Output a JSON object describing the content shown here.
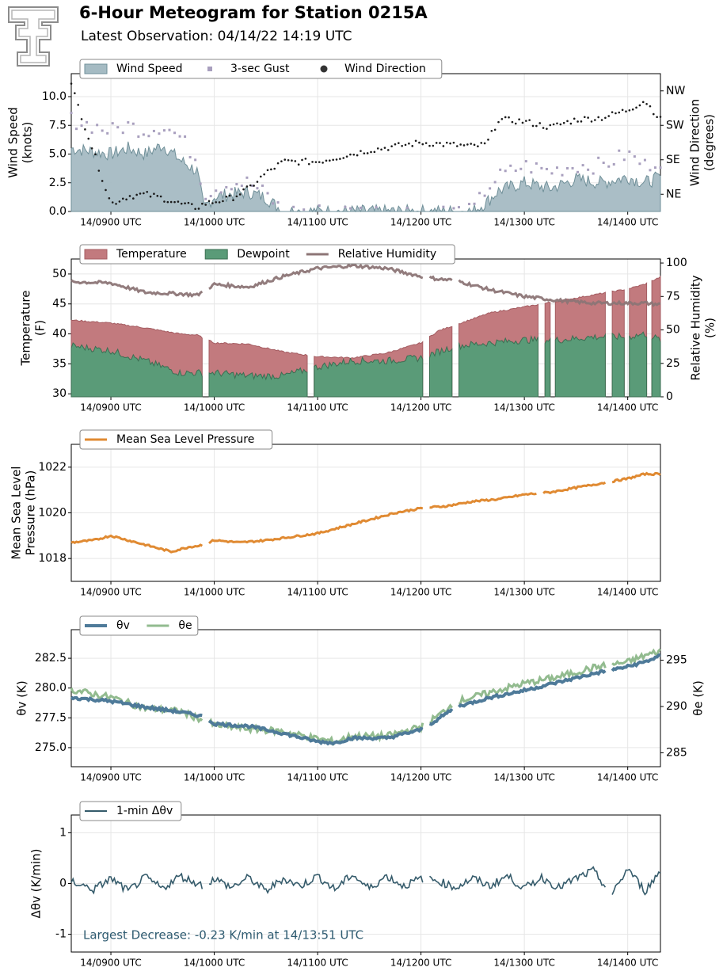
{
  "header": {
    "title": "6-Hour Meteogram for Station 0215A",
    "subtitle": "Latest Observation: 04/14/22 14:19 UTC"
  },
  "x_tick_labels": [
    "14/0900 UTC",
    "14/1000 UTC",
    "14/1100 UTC",
    "14/1200 UTC",
    "14/1300 UTC",
    "14/1400 UTC"
  ],
  "chart_data": [
    {
      "type": "area",
      "legend": [
        "Wind Speed",
        "3-sec Gust",
        "Wind Direction"
      ],
      "legend_placement": "top-left",
      "ylabel": "Wind Speed\n(knots)",
      "ylabel2": "Wind Direction\n(degrees)",
      "ylim": [
        0,
        12
      ],
      "yticks": [
        0.0,
        2.5,
        5.0,
        7.5,
        10.0
      ],
      "ylim2": [
        0,
        360
      ],
      "yticks2_labels": [
        "NE",
        "SE",
        "SW",
        "NW"
      ],
      "yticks2_values": [
        45,
        135,
        225,
        315
      ],
      "x": [
        "08:37",
        "09:00",
        "09:10",
        "09:20",
        "09:30",
        "09:40",
        "09:50",
        "09:54",
        "10:00",
        "10:10",
        "10:20",
        "10:30",
        "10:40",
        "10:50",
        "11:00",
        "11:30",
        "12:00",
        "12:30",
        "12:38",
        "12:45",
        "13:00",
        "13:15",
        "13:30",
        "13:45",
        "14:00",
        "14:10",
        "14:19"
      ],
      "wind_speed": [
        5.5,
        5.0,
        5.5,
        5.0,
        5.8,
        4.5,
        3.5,
        0.3,
        1.3,
        1.5,
        1.7,
        1.2,
        0.0,
        0.0,
        0.0,
        0.0,
        0.0,
        0.0,
        0.8,
        1.8,
        2.5,
        2.0,
        2.8,
        2.5,
        3.0,
        2.5,
        3.0
      ],
      "gust": [
        8.0,
        7.0,
        7.5,
        7.0,
        7.5,
        6.5,
        4.5,
        1.5,
        2.0,
        2.5,
        2.5,
        1.5,
        0.0,
        0.0,
        0.0,
        0.0,
        0.0,
        0.0,
        2.0,
        3.0,
        4.0,
        3.5,
        4.0,
        4.0,
        5.0,
        4.0,
        4.5
      ],
      "wind_direction": [
        330,
        20,
        40,
        45,
        35,
        20,
        10,
        20,
        25,
        35,
        60,
        100,
        130,
        130,
        130,
        160,
        180,
        170,
        175,
        240,
        235,
        220,
        240,
        245,
        265,
        290,
        240
      ]
    },
    {
      "type": "area",
      "legend": [
        "Temperature",
        "Dewpoint",
        "Relative Humidity"
      ],
      "legend_placement": "top-left",
      "ylabel": "Temperature\n(F)",
      "ylabel2": "Relative Humidity\n(%)",
      "ylim": [
        29.5,
        52.5
      ],
      "yticks": [
        30,
        35,
        40,
        45,
        50
      ],
      "ylim2": [
        0,
        103
      ],
      "yticks2": [
        0,
        25,
        50,
        75,
        100
      ],
      "x": [
        "08:37",
        "09:00",
        "09:20",
        "09:40",
        "09:50",
        "10:00",
        "10:20",
        "10:40",
        "11:00",
        "11:20",
        "11:40",
        "12:00",
        "12:10",
        "12:20",
        "12:40",
        "13:00",
        "13:20",
        "13:40",
        "14:00",
        "14:10",
        "14:19"
      ],
      "temperature": [
        42.3,
        41.8,
        41.0,
        40.0,
        39.8,
        38.5,
        38.3,
        37.0,
        36.2,
        36.0,
        36.8,
        38.5,
        40.5,
        41.5,
        43.5,
        44.5,
        45.5,
        46.5,
        47.5,
        48.3,
        49.5
      ],
      "dewpoint": [
        38.0,
        37.2,
        35.5,
        33.5,
        33.5,
        33.5,
        33.0,
        33.0,
        34.5,
        35.5,
        35.5,
        36.0,
        37.0,
        38.0,
        38.5,
        39.0,
        39.0,
        39.5,
        39.5,
        40.0,
        39.0
      ],
      "relative_humidity": [
        86,
        85,
        78,
        77,
        76,
        84,
        82,
        90,
        96,
        98,
        96,
        90,
        88,
        87,
        80,
        75,
        72,
        70,
        70,
        70,
        69
      ]
    },
    {
      "type": "line",
      "legend": [
        "Mean Sea Level Pressure"
      ],
      "legend_placement": "top-left",
      "ylabel": "Mean Sea Level\nPressure (hPa)",
      "ylim": [
        1017,
        1023
      ],
      "yticks": [
        1018,
        1020,
        1022
      ],
      "x": [
        "08:37",
        "08:50",
        "09:00",
        "09:15",
        "09:25",
        "09:35",
        "09:45",
        "09:54",
        "10:00",
        "10:15",
        "10:30",
        "10:50",
        "11:00",
        "11:15",
        "11:30",
        "11:45",
        "12:00",
        "12:15",
        "12:30",
        "12:45",
        "13:00",
        "13:15",
        "13:30",
        "13:45",
        "14:00",
        "14:10",
        "14:19"
      ],
      "values": [
        1018.7,
        1018.8,
        1019.0,
        1018.7,
        1018.5,
        1018.3,
        1018.5,
        1018.6,
        1018.8,
        1018.7,
        1018.8,
        1019.0,
        1019.1,
        1019.4,
        1019.7,
        1020.0,
        1020.2,
        1020.3,
        1020.5,
        1020.6,
        1020.8,
        1020.9,
        1021.1,
        1021.3,
        1021.5,
        1021.7,
        1021.7
      ]
    },
    {
      "type": "line",
      "legend": [
        "θv",
        "θe"
      ],
      "legend_placement": "top-left",
      "ylabel": "θv (K)",
      "ylabel2": "θe (K)",
      "ylim": [
        273.4,
        284.9
      ],
      "yticks": [
        275.0,
        277.5,
        280.0,
        282.5
      ],
      "ylim2": [
        283.5,
        298.3
      ],
      "yticks2": [
        285,
        290,
        295
      ],
      "x": [
        "08:37",
        "09:00",
        "09:20",
        "09:40",
        "09:54",
        "10:00",
        "10:20",
        "10:40",
        "11:00",
        "11:10",
        "11:20",
        "11:40",
        "12:00",
        "12:10",
        "12:20",
        "12:40",
        "13:00",
        "13:20",
        "13:40",
        "14:00",
        "14:10",
        "14:19"
      ],
      "theta_v": [
        279.2,
        278.9,
        278.4,
        278.0,
        277.6,
        277.0,
        276.8,
        276.2,
        275.5,
        275.4,
        275.8,
        275.8,
        276.5,
        277.4,
        278.4,
        279.2,
        279.8,
        280.5,
        281.2,
        281.8,
        282.2,
        282.7
      ],
      "theta_e": [
        291.8,
        291.0,
        289.8,
        289.5,
        288.5,
        288.0,
        287.6,
        287.3,
        286.5,
        286.2,
        286.8,
        286.8,
        287.8,
        289.0,
        290.5,
        291.5,
        292.5,
        293.2,
        294.2,
        294.8,
        295.5,
        296.0
      ]
    },
    {
      "type": "line",
      "legend": [
        "1-min Δθv"
      ],
      "legend_placement": "top-left",
      "ylabel": "Δθv (K/min)",
      "ylim": [
        -1.35,
        1.35
      ],
      "yticks": [
        -1,
        0,
        1
      ],
      "annotation": "Largest Decrease: -0.23 K/min at 14/13:51 UTC",
      "x": [
        "08:37",
        "08:50",
        "09:00",
        "09:10",
        "09:20",
        "09:30",
        "09:40",
        "09:54",
        "10:00",
        "10:10",
        "10:20",
        "10:30",
        "10:40",
        "10:50",
        "11:00",
        "11:10",
        "11:20",
        "11:30",
        "11:40",
        "11:50",
        "12:00",
        "12:10",
        "12:20",
        "12:30",
        "12:40",
        "12:50",
        "13:00",
        "13:10",
        "13:20",
        "13:30",
        "13:40",
        "13:51",
        "14:00",
        "14:10",
        "14:19"
      ],
      "values": [
        0.05,
        -0.12,
        0.1,
        -0.15,
        0.12,
        -0.1,
        0.15,
        -0.05,
        0.1,
        -0.08,
        0.12,
        -0.15,
        0.1,
        -0.05,
        0.15,
        -0.12,
        0.18,
        -0.1,
        0.15,
        -0.05,
        0.1,
        0.05,
        -0.08,
        0.1,
        -0.05,
        0.15,
        -0.1,
        0.12,
        -0.08,
        0.1,
        0.25,
        -0.23,
        0.3,
        -0.15,
        0.25
      ]
    }
  ],
  "colors": {
    "wind_speed": "#a5bbc3",
    "gust": "#a89fbe",
    "wind_direction": "#1a1a1a",
    "temperature": "#c27a7e",
    "dewpoint": "#5a9b78",
    "relative_humidity": "#8c7576",
    "pressure": "#e08a32",
    "theta_v": "#4e7a99",
    "theta_e": "#92bb8f",
    "dtheta": "#355b6b"
  }
}
